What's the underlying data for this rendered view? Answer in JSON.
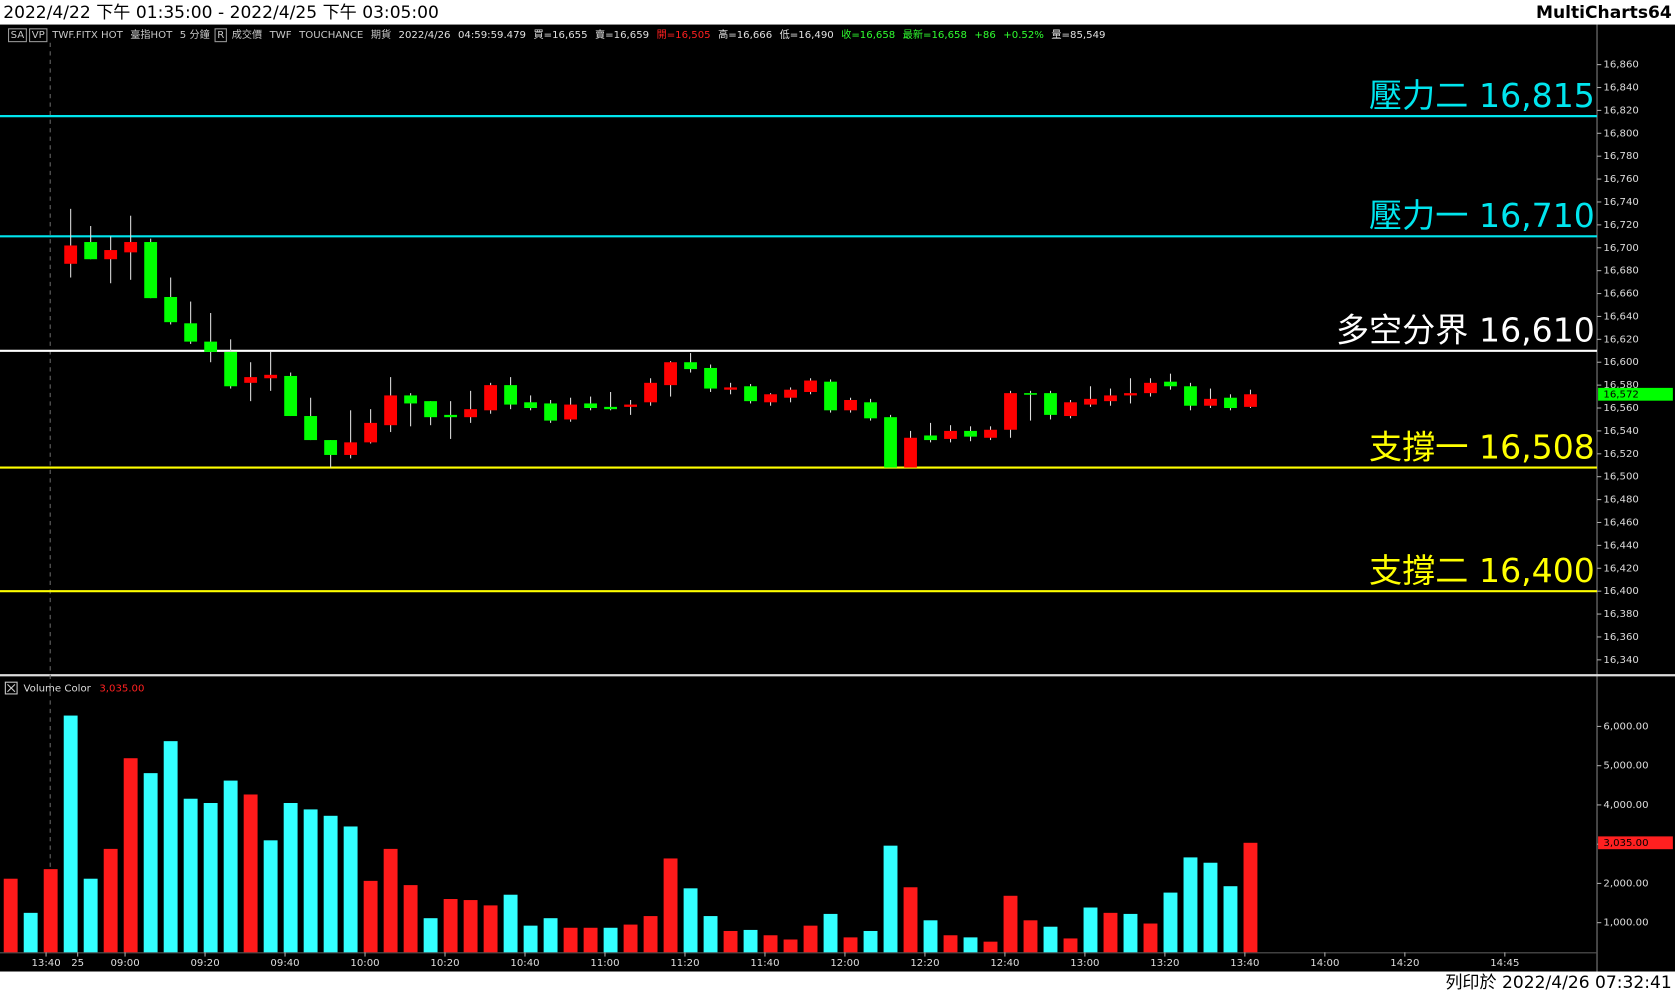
{
  "title": "2022/4/22 下午 01:35:00 - 2022/4/25 下午 03:05:00",
  "app": "MultiCharts64",
  "footer": "列印於 2022/4/26 07:32:41",
  "toolbar": [
    {
      "text": "SA",
      "color": "#c8c8c8"
    },
    {
      "text": "VP",
      "color": "#c8c8c8"
    },
    {
      "text": "TWF.FITX HOT",
      "color": "#c8c8c8"
    },
    {
      "text": "臺指HOT",
      "color": "#c8c8c8"
    },
    {
      "text": "5 分鐘",
      "color": "#c8c8c8"
    },
    {
      "text": "R",
      "color": "#c8c8c8"
    },
    {
      "text": "成交價",
      "color": "#c8c8c8"
    },
    {
      "text": "TWF",
      "color": "#c8c8c8"
    },
    {
      "text": "TOUCHANCE",
      "color": "#c8c8c8"
    },
    {
      "text": "期貨",
      "color": "#c8c8c8"
    },
    {
      "text": "2022/4/26",
      "color": "#e0e0e0"
    },
    {
      "text": "04:59:59.479",
      "color": "#e0e0e0"
    },
    {
      "text": "買=16,655",
      "color": "#e0e0e0"
    },
    {
      "text": "賣=16,659",
      "color": "#e0e0e0"
    },
    {
      "text": "開=16,505",
      "color": "#ff2020"
    },
    {
      "text": "高=16,666",
      "color": "#e0e0e0"
    },
    {
      "text": "低=16,490",
      "color": "#e0e0e0"
    },
    {
      "text": "收=16,658",
      "color": "#30ff30"
    },
    {
      "text": "最新=16,658",
      "color": "#30ff30"
    },
    {
      "text": "+86",
      "color": "#30ff30"
    },
    {
      "text": "+0.52%",
      "color": "#30ff30"
    },
    {
      "text": "量=85,549",
      "color": "#e0e0e0"
    }
  ],
  "chart_data": [
    {
      "type": "candlestick",
      "up_color": "#ff0000",
      "down_color": "#00ff00",
      "xlim": [
        -0.534,
        79.33
      ],
      "ylim": [
        16327,
        16895
      ],
      "open": [
        null,
        null,
        null,
        16686,
        16705,
        16690,
        16696,
        16705,
        16657,
        16634,
        16618,
        16609,
        16582,
        16586,
        16588,
        16553,
        16532,
        16519,
        16530,
        16545,
        16571,
        16566,
        16554,
        16552,
        16558,
        16580,
        16565,
        16564,
        16550,
        16564,
        16561,
        16561,
        16565,
        16580,
        16600,
        16595,
        16576,
        16579,
        16565,
        16569,
        16574,
        16583,
        16558,
        16565,
        16552,
        16508,
        16536,
        16533,
        16540,
        16534,
        16541,
        16573,
        16573,
        16553,
        16563,
        16566,
        16571,
        16573,
        16583,
        16579,
        16562,
        16569,
        16561
      ],
      "high": [
        null,
        null,
        null,
        16734,
        16719,
        16710,
        16728,
        16708,
        16674,
        16653,
        16643,
        16620,
        16600,
        16609,
        16591,
        16569,
        16532,
        16558,
        16559,
        16587,
        16573,
        16566,
        16566,
        16575,
        16582,
        16587,
        16571,
        16567,
        16569,
        16570,
        16574,
        16567,
        16586,
        16601,
        16608,
        16598,
        16582,
        16581,
        16573,
        16578,
        16586,
        16585,
        16569,
        16568,
        16554,
        16540,
        16547,
        16545,
        16544,
        16544,
        16575,
        16575,
        16575,
        16567,
        16579,
        16577,
        16586,
        16586,
        16590,
        16582,
        16577,
        16572,
        16576
      ],
      "low": [
        null,
        null,
        null,
        16674,
        16690,
        16669,
        16672,
        16656,
        16633,
        16616,
        16600,
        16577,
        16566,
        16575,
        16553,
        16532,
        16508,
        16516,
        16529,
        16539,
        16544,
        16545,
        16533,
        16547,
        16555,
        16559,
        16558,
        16547,
        16548,
        16558,
        16558,
        16554,
        16562,
        16570,
        16591,
        16574,
        16572,
        16564,
        16562,
        16565,
        16572,
        16556,
        16556,
        16549,
        16508,
        16508,
        16530,
        16530,
        16531,
        16532,
        16534,
        16549,
        16550,
        16551,
        16561,
        16562,
        16564,
        16570,
        16576,
        16558,
        16560,
        16558,
        16560
      ],
      "close": [
        null,
        null,
        null,
        16702,
        16690,
        16698,
        16705,
        16656,
        16635,
        16618,
        16609,
        16579,
        16587,
        16589,
        16553,
        16532,
        16519,
        16530,
        16547,
        16571,
        16564,
        16552,
        16552,
        16559,
        16580,
        16563,
        16560,
        16549,
        16563,
        16560,
        16559,
        16563,
        16582,
        16600,
        16594,
        16577,
        16578,
        16566,
        16572,
        16576,
        16584,
        16558,
        16567,
        16551,
        16508,
        16534,
        16532,
        16540,
        16535,
        16541,
        16573,
        16572,
        16554,
        16565,
        16568,
        16571,
        16573,
        16582,
        16579,
        16562,
        16568,
        16560,
        16572
      ],
      "yticks": [
        {
          "value": 16340,
          "label": "16,340"
        },
        {
          "value": 16360,
          "label": "16,360"
        },
        {
          "value": 16380,
          "label": "16,380"
        },
        {
          "value": 16400,
          "label": "16,400"
        },
        {
          "value": 16420,
          "label": "16,420"
        },
        {
          "value": 16440,
          "label": "16,440"
        },
        {
          "value": 16460,
          "label": "16,460"
        },
        {
          "value": 16480,
          "label": "16,480"
        },
        {
          "value": 16500,
          "label": "16,500"
        },
        {
          "value": 16520,
          "label": "16,520"
        },
        {
          "value": 16540,
          "label": "16,540"
        },
        {
          "value": 16560,
          "label": "16,560"
        },
        {
          "value": 16580,
          "label": "16,580"
        },
        {
          "value": 16600,
          "label": "16,600"
        },
        {
          "value": 16620,
          "label": "16,620"
        },
        {
          "value": 16640,
          "label": "16,640"
        },
        {
          "value": 16660,
          "label": "16,660"
        },
        {
          "value": 16680,
          "label": "16,680"
        },
        {
          "value": 16700,
          "label": "16,700"
        },
        {
          "value": 16720,
          "label": "16,720"
        },
        {
          "value": 16740,
          "label": "16,740"
        },
        {
          "value": 16760,
          "label": "16,760"
        },
        {
          "value": 16780,
          "label": "16,780"
        },
        {
          "value": 16800,
          "label": "16,800"
        },
        {
          "value": 16820,
          "label": "16,820"
        },
        {
          "value": 16840,
          "label": "16,840"
        },
        {
          "value": 16860,
          "label": "16,860"
        }
      ],
      "levels": [
        {
          "name": "壓力二",
          "value": 16815,
          "value_label": "16,815",
          "color": "#00e5ee"
        },
        {
          "name": "壓力一",
          "value": 16710,
          "value_label": "16,710",
          "color": "#00e5ee"
        },
        {
          "name": "多空分界",
          "value": 16610,
          "value_label": "16,610",
          "color": "#ffffff"
        },
        {
          "name": "支撐一",
          "value": 16508,
          "value_label": "16,508",
          "color": "#ffff00"
        },
        {
          "name": "支撐二",
          "value": 16400,
          "value_label": "16,400",
          "color": "#ffff00"
        }
      ],
      "last_price": {
        "value": 16572,
        "label": "16,572",
        "color": "#00ff00"
      }
    },
    {
      "type": "bar",
      "name": "Volume Color",
      "xlim": [
        -0.534,
        79.33
      ],
      "ylim": [
        245,
        7100
      ],
      "values": [
        2120,
        1250,
        2364,
        6277,
        2120,
        2880,
        5190,
        4810,
        5625,
        4158,
        4049,
        4620,
        4266,
        3098,
        4049,
        3886,
        3723,
        3451,
        2065,
        2880,
        1957,
        1114,
        1603,
        1576,
        1440,
        1712,
        924,
        1114,
        870,
        870,
        870,
        951,
        1168,
        2636,
        1875,
        1168,
        788,
        815,
        679,
        571,
        924,
        1223,
        625,
        788,
        2962,
        1902,
        1060,
        679,
        625,
        516,
        1685,
        1060,
        897,
        598,
        1386,
        1250,
        1223,
        978,
        1766,
        2663,
        2527,
        1929,
        3035
      ],
      "value_labels": [
        null,
        null,
        null,
        null,
        null,
        null,
        null,
        null,
        null,
        null,
        null,
        null,
        null,
        null,
        null,
        null,
        null,
        null,
        null,
        null,
        null,
        null,
        null,
        null,
        null,
        null,
        null,
        null,
        null,
        null,
        null,
        null,
        null,
        null,
        null,
        null,
        null,
        null,
        null,
        null,
        null,
        null,
        null,
        null,
        null,
        null,
        null,
        null,
        null,
        null,
        null,
        null,
        null,
        null,
        null,
        null,
        null,
        null,
        null,
        null,
        null,
        null,
        "3,035.00"
      ],
      "colors": [
        "#ff1a1a",
        "#33ffff",
        "#ff1a1a",
        "#33ffff",
        "#33ffff",
        "#ff1a1a",
        "#ff1a1a",
        "#33ffff",
        "#33ffff",
        "#33ffff",
        "#33ffff",
        "#33ffff",
        "#ff1a1a",
        "#33ffff",
        "#33ffff",
        "#33ffff",
        "#33ffff",
        "#33ffff",
        "#ff1a1a",
        "#ff1a1a",
        "#ff1a1a",
        "#33ffff",
        "#ff1a1a",
        "#ff1a1a",
        "#ff1a1a",
        "#33ffff",
        "#33ffff",
        "#33ffff",
        "#ff1a1a",
        "#ff1a1a",
        "#33ffff",
        "#ff1a1a",
        "#ff1a1a",
        "#ff1a1a",
        "#33ffff",
        "#33ffff",
        "#ff1a1a",
        "#33ffff",
        "#ff1a1a",
        "#ff1a1a",
        "#ff1a1a",
        "#33ffff",
        "#ff1a1a",
        "#33ffff",
        "#33ffff",
        "#ff1a1a",
        "#33ffff",
        "#ff1a1a",
        "#33ffff",
        "#ff1a1a",
        "#ff1a1a",
        "#ff1a1a",
        "#33ffff",
        "#ff1a1a",
        "#33ffff",
        "#ff1a1a",
        "#33ffff",
        "#ff1a1a",
        "#33ffff",
        "#33ffff",
        "#33ffff",
        "#33ffff",
        "#ff1a1a"
      ],
      "label_color": "#ff2020",
      "yticks": [
        {
          "value": 1000,
          "label": "1,000.00"
        },
        {
          "value": 2000,
          "label": "2,000.00"
        },
        {
          "value": 3000,
          "label": "3,000.00"
        },
        {
          "value": 4000,
          "label": "4,000.00"
        },
        {
          "value": 5000,
          "label": "5,000.00"
        },
        {
          "value": 6000,
          "label": "6,000.00"
        }
      ],
      "xticks": [
        {
          "value": 1.77,
          "label": "13:40"
        },
        {
          "value": 3.35,
          "label": "25"
        },
        {
          "value": 5.72,
          "label": "09:00"
        },
        {
          "value": 9.72,
          "label": "09:20"
        },
        {
          "value": 13.72,
          "label": "09:40"
        },
        {
          "value": 17.72,
          "label": "10:00"
        },
        {
          "value": 21.72,
          "label": "10:20"
        },
        {
          "value": 25.72,
          "label": "10:40"
        },
        {
          "value": 29.72,
          "label": "11:00"
        },
        {
          "value": 33.72,
          "label": "11:20"
        },
        {
          "value": 37.72,
          "label": "11:40"
        },
        {
          "value": 41.72,
          "label": "12:00"
        },
        {
          "value": 45.72,
          "label": "12:20"
        },
        {
          "value": 49.72,
          "label": "12:40"
        },
        {
          "value": 53.72,
          "label": "13:00"
        },
        {
          "value": 57.72,
          "label": "13:20"
        },
        {
          "value": 61.72,
          "label": "13:40"
        },
        {
          "value": 65.72,
          "label": "14:00"
        },
        {
          "value": 69.72,
          "label": "14:20"
        },
        {
          "value": 74.72,
          "label": "14:45"
        }
      ]
    }
  ]
}
